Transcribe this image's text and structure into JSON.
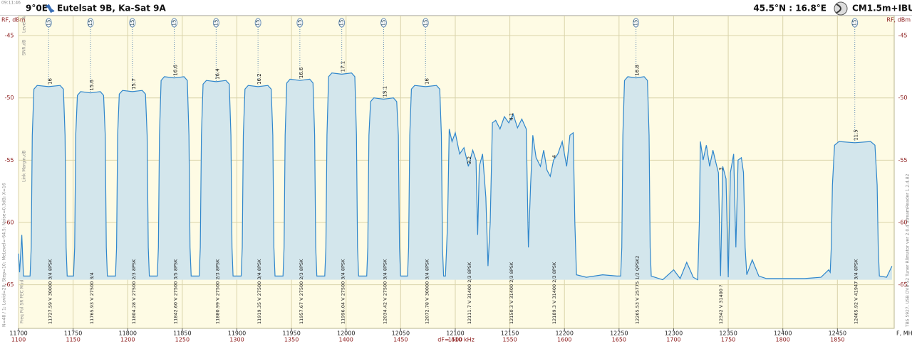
{
  "chart_data": {
    "type": "line",
    "timestamp": "09:11:46",
    "orbital_position": "9°0E",
    "title": "Eutelsat 9B, Ka-Sat 9A",
    "location": "45.5°N : 16.8°E",
    "antenna": "CM1.5m+IBU",
    "y_label": "RF, dBm",
    "y_label_right": "RF, dBm",
    "level_label": "Level,%",
    "snr_label": "SNR,dB",
    "margin_label": "Link Margin,dB",
    "x_label": "F, MHz",
    "resolution": "dF= 410 kHz",
    "fields_label": "Freq  Pol  SR  FEC  Mod",
    "scan_info": "N=48 / 1; Lavid=20; Step=10; MeLevel=-64.5; Noise=0.3dB; X=16",
    "device_info": "TBS 5927, USB DVB-S2 Tuner   Rlimator ver 2.0.4   StreamReader 1.2.4.82",
    "color": "#2f86cc",
    "fill_color": "#d3e6ec",
    "grid": true,
    "xlim": [
      11700,
      12502
    ],
    "xticks": [
      11700,
      11750,
      11800,
      11850,
      11900,
      11950,
      12000,
      12050,
      12100,
      12150,
      12200,
      12250,
      12300,
      12350,
      12400,
      12450
    ],
    "x2lim": [
      1100,
      1902
    ],
    "x2ticks": [
      1100,
      1150,
      1200,
      1250,
      1300,
      1350,
      1400,
      1450,
      1500,
      1550,
      1600,
      1650,
      1700,
      1750,
      1800,
      1850
    ],
    "ylim": [
      -68.5,
      -43.4
    ],
    "yticks": [
      -45,
      -50,
      -55,
      -60,
      -65
    ],
    "x": [
      11700,
      11701,
      11703,
      11704.5,
      11710,
      11710.6,
      11711.6,
      11712.6,
      11714.1,
      11717.1,
      11727.6,
      11738.1,
      11741.1,
      11742.6,
      11743.6,
      11744.6,
      11750.4,
      11751.4,
      11752.4,
      11753.9,
      11756.9,
      11765.9,
      11774.9,
      11777.9,
      11779.4,
      11780.4,
      11781.4,
      11788.8,
      11789.8,
      11790.8,
      11792.3,
      11795.3,
      11804.3,
      11813.3,
      11816.3,
      11817.8,
      11818.8,
      11819.8,
      11827.1,
      11828.1,
      11829.1,
      11830.6,
      11833.6,
      11842.6,
      11851.6,
      11854.6,
      11856.1,
      11857.1,
      11858.1,
      11865.5,
      11866.5,
      11867.5,
      11869.0,
      11872.0,
      11881.0,
      11890.0,
      11893.0,
      11894.5,
      11895.5,
      11896.5,
      11903.9,
      11904.9,
      11905.9,
      11907.4,
      11910.4,
      11919.4,
      11928.4,
      11931.4,
      11932.9,
      11933.9,
      11934.9,
      11942.2,
      11943.2,
      11944.2,
      11945.7,
      11948.7,
      11957.7,
      11966.7,
      11969.7,
      11971.2,
      11972.2,
      11973.2,
      11980.5,
      11981.5,
      11982.5,
      11984.0,
      11987.0,
      11996.0,
      12005.0,
      12008.0,
      12009.5,
      12010.5,
      12011.5,
      12018.9,
      12019.9,
      12020.9,
      12022.4,
      12025.4,
      12034.4,
      12043.4,
      12046.4,
      12047.9,
      12048.9,
      12049.9,
      12056.3,
      12057.3,
      12058.3,
      12059.8,
      12062.8,
      12072.8,
      12082.8,
      12085.8,
      12087.3,
      12088.3,
      12089.3,
      12091,
      12093,
      12094.5,
      12097,
      12100,
      12104,
      12108,
      12112,
      12116,
      12119,
      12120.5,
      12122,
      12125,
      12128,
      12130,
      12132,
      12134,
      12137,
      12141,
      12145,
      12149,
      12153,
      12157,
      12161,
      12165,
      12167,
      12169,
      12171,
      12174,
      12178,
      12181,
      12184,
      12187,
      12190,
      12194,
      12198,
      12202,
      12205,
      12208,
      12209.5,
      12211,
      12220,
      12235,
      12248,
      12251.5,
      12252.5,
      12253.5,
      12255.0,
      12258.0,
      12265.5,
      12273.0,
      12276.0,
      12277.5,
      12278.5,
      12279.5,
      12290,
      12300,
      12306,
      12312,
      12318,
      12322,
      12323.5,
      12324.5,
      12327,
      12330,
      12333,
      12336,
      12339,
      12341,
      12343,
      12345,
      12348,
      12350,
      12352,
      12355,
      12357,
      12359,
      12362,
      12364,
      12365.5,
      12367,
      12372,
      12378,
      12385,
      12400,
      12420,
      12435,
      12442,
      12443.4,
      12444.4,
      12445.4,
      12447.4,
      12451.4,
      12465.9,
      12480.4,
      12484.4,
      12486.4,
      12487.4,
      12488.4,
      12495,
      12500
    ],
    "values": [
      -62.5,
      -64,
      -61,
      -64.3,
      -64.3,
      -64.3,
      -62,
      -53,
      -49.3,
      -49,
      -49.1,
      -49,
      -49.3,
      -53,
      -62,
      -64.3,
      -64.3,
      -62,
      -53,
      -49.8,
      -49.5,
      -49.6,
      -49.5,
      -49.8,
      -53,
      -62,
      -64.3,
      -64.3,
      -62,
      -53,
      -49.7,
      -49.4,
      -49.5,
      -49.4,
      -49.7,
      -53,
      -62,
      -64.3,
      -64.3,
      -62,
      -53,
      -48.6,
      -48.3,
      -48.4,
      -48.3,
      -48.6,
      -53,
      -62,
      -64.3,
      -64.3,
      -62,
      -53,
      -48.9,
      -48.6,
      -48.7,
      -48.6,
      -48.9,
      -53,
      -62,
      -64.3,
      -64.3,
      -62,
      -53,
      -49.3,
      -49,
      -49.1,
      -49,
      -49.3,
      -53,
      -62,
      -64.3,
      -64.3,
      -62,
      -53,
      -48.8,
      -48.5,
      -48.6,
      -48.5,
      -48.8,
      -53,
      -62,
      -64.3,
      -64.3,
      -62,
      -53,
      -48.3,
      -48,
      -48.1,
      -48,
      -48.3,
      -53,
      -62,
      -64.3,
      -64.3,
      -62,
      -53,
      -50.3,
      -50,
      -50.1,
      -50,
      -50.3,
      -53,
      -62,
      -64.3,
      -64.3,
      -62,
      -53,
      -49.3,
      -49,
      -49.1,
      -49,
      -49.3,
      -53,
      -62,
      -64.3,
      -64.3,
      -60,
      -52.5,
      -53.5,
      -52.8,
      -54.5,
      -54,
      -55.5,
      -54.2,
      -55,
      -61,
      -55.5,
      -54.5,
      -58,
      -63.5,
      -60,
      -52,
      -51.8,
      -52.5,
      -51.5,
      -52,
      -51.3,
      -52.4,
      -51.7,
      -52.5,
      -62,
      -57,
      -53,
      -54.8,
      -55.5,
      -54.2,
      -55.8,
      -56.3,
      -55,
      -54.5,
      -53.5,
      -55.5,
      -53,
      -52.8,
      -60,
      -64.2,
      -64.4,
      -64.2,
      -64.3,
      -64.3,
      -62,
      -53,
      -48.6,
      -48.3,
      -48.4,
      -48.3,
      -48.6,
      -53,
      -62,
      -64.3,
      -64.6,
      -63.8,
      -64.5,
      -63.2,
      -64.4,
      -64.6,
      -60,
      -53.5,
      -55,
      -53.8,
      -55.5,
      -54.2,
      -55.3,
      -56,
      -64.3,
      -55.5,
      -56.5,
      -64.4,
      -56,
      -54.5,
      -62,
      -55,
      -54.8,
      -56,
      -62,
      -64.2,
      -63,
      -64.3,
      -64.5,
      -64.5,
      -64.5,
      -64.4,
      -63.8,
      -64,
      -62,
      -57,
      -53.8,
      -53.5,
      -53.6,
      -53.5,
      -53.8,
      -57,
      -62,
      -64.3,
      -64.4,
      -63.5
    ],
    "carriers": [
      {
        "freq": 11727.59,
        "label": "11727.59  V  30000  3/4  8PSK",
        "level": 15,
        "snr": 16
      },
      {
        "freq": 11765.93,
        "label": "11765.93  V  27500  3/4",
        "level": 15,
        "snr": 15.6
      },
      {
        "freq": 11804.28,
        "label": "11804.28  V  27500  2/3  8PSK",
        "level": 15,
        "snr": 15.7
      },
      {
        "freq": 11842.6,
        "label": "11842.60  V  27500  3/5  8PSK",
        "level": 15,
        "snr": 16.6
      },
      {
        "freq": 11880.99,
        "label": "11880.99  V  27500  2/3  8PSK",
        "level": 15,
        "snr": 16.4
      },
      {
        "freq": 11919.35,
        "label": "11919.35  V  27500  3/4  8PSK",
        "level": 15,
        "snr": 16.2
      },
      {
        "freq": 11957.67,
        "label": "11957.67  V  27500  2/3  8PSK",
        "level": 15,
        "snr": 16.6
      },
      {
        "freq": 11996.04,
        "label": "11996.04  V  27500  3/4  8PSK",
        "level": 15,
        "snr": 17.1
      },
      {
        "freq": 12034.42,
        "label": "12034.42  V  27500  3/4  8PSK",
        "level": 15,
        "snr": 15.1
      },
      {
        "freq": 12072.78,
        "label": "12072.78  V  30000  3/4  8PSK",
        "level": 15,
        "snr": 16
      },
      {
        "freq": 12111.7,
        "label": "12111.7  V  31400  2/3  8PSK",
        "snr": 3.2
      },
      {
        "freq": 12150.3,
        "label": "12150.3  V  31400  2/3  8PSK",
        "snr": 4.1
      },
      {
        "freq": 12189.3,
        "label": "12189.3  V  31400  2/3  8PSK",
        "snr": 4
      },
      {
        "freq": 12265.53,
        "label": "12265.53  V  25775  1/2  QPSK2",
        "level": 15,
        "snr": 16.8
      },
      {
        "freq": 12342,
        "label": "12342  V  31400  ?",
        "snr": 3
      },
      {
        "freq": 12465.92,
        "label": "12465.92  V  41947  3/4  8PSK",
        "level": 15,
        "snr": 11.5
      }
    ]
  }
}
